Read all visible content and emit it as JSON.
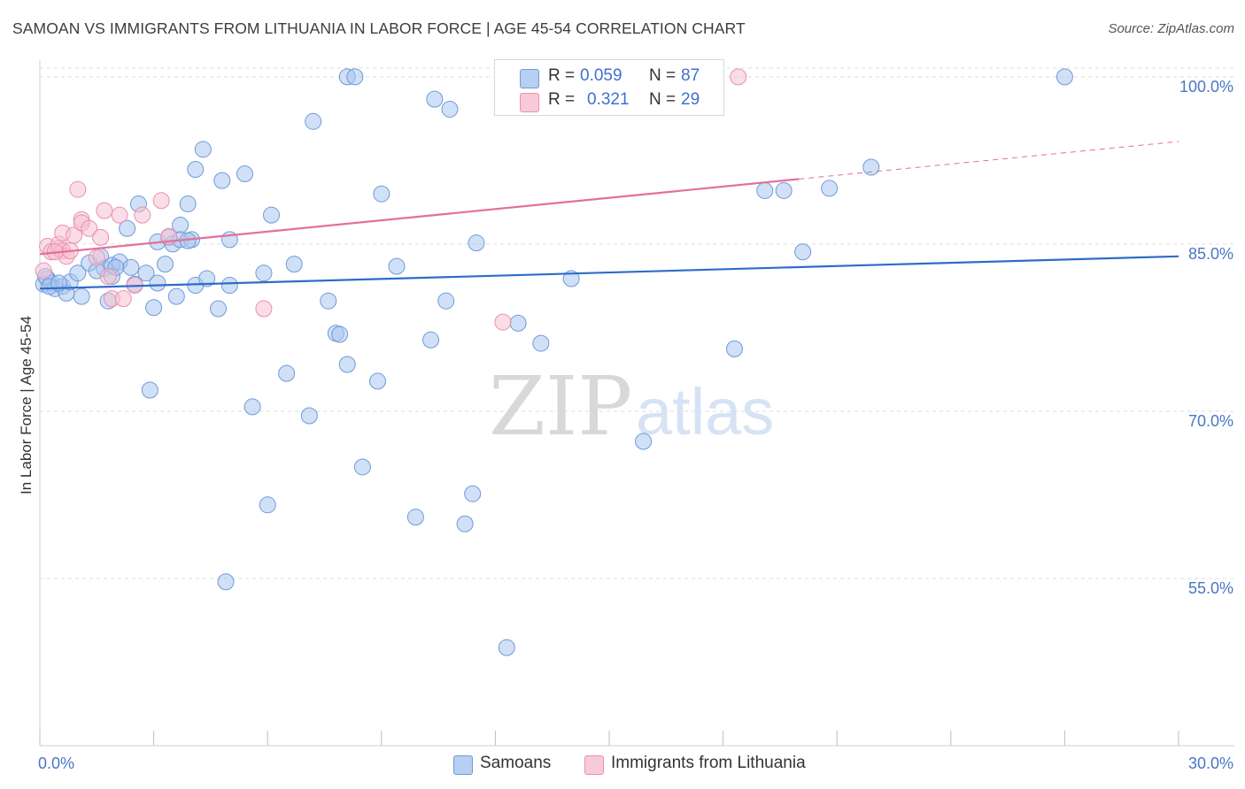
{
  "header": {
    "title": "SAMOAN VS IMMIGRANTS FROM LITHUANIA IN LABOR FORCE | AGE 45-54 CORRELATION CHART",
    "source": "Source: ZipAtlas.com"
  },
  "legend": {
    "r_label": "R =",
    "n_label": "N =",
    "series": [
      {
        "name": "Samoans",
        "r": "0.059",
        "n": "87"
      },
      {
        "name": "Immigrants from Lithuania",
        "r": "0.321",
        "n": "29"
      }
    ]
  },
  "watermark": {
    "zip": "ZIP",
    "atlas": "atlas"
  },
  "colors": {
    "blue_fill": "#a9c6ef",
    "blue_stroke": "#6f9ad8",
    "blue_line": "#2f6cc9",
    "pink_fill": "#f6c1d1",
    "pink_stroke": "#ea90ae",
    "pink_line": "#e2709a",
    "grid": "#dddddd",
    "tick_label": "#4a76c6"
  },
  "chart_data": {
    "type": "scatter",
    "title": "SAMOAN VS IMMIGRANTS FROM LITHUANIA IN LABOR FORCE | AGE 45-54 CORRELATION CHART",
    "xlabel": "",
    "ylabel": "In Labor Force | Age 45-54",
    "xlim": [
      0,
      30
    ],
    "ylim": [
      40,
      101.5
    ],
    "x_tick_labels": [
      "0.0%",
      "30.0%"
    ],
    "y_ticks": [
      55,
      70,
      85,
      100
    ],
    "y_tick_labels": [
      "55.0%",
      "70.0%",
      "85.0%",
      "100.0%"
    ],
    "grid": true,
    "legend_position": "top-center",
    "series": [
      {
        "name": "Samoans",
        "color": "#a9c6ef",
        "trend": {
          "x": [
            0,
            30
          ],
          "y": [
            81.0,
            83.9
          ]
        },
        "points": [
          [
            0.1,
            81.4
          ],
          [
            0.2,
            81.9
          ],
          [
            0.3,
            81.5
          ],
          [
            0.4,
            81.0
          ],
          [
            0.6,
            81.2
          ],
          [
            0.7,
            80.6
          ],
          [
            0.8,
            81.6
          ],
          [
            1.0,
            82.4
          ],
          [
            1.1,
            80.3
          ],
          [
            1.3,
            83.3
          ],
          [
            1.6,
            83.9
          ],
          [
            1.7,
            82.8
          ],
          [
            1.8,
            79.9
          ],
          [
            1.9,
            83.1
          ],
          [
            1.9,
            82.1
          ],
          [
            2.1,
            83.4
          ],
          [
            2.3,
            86.4
          ],
          [
            2.4,
            82.9
          ],
          [
            2.5,
            81.4
          ],
          [
            2.6,
            88.6
          ],
          [
            2.8,
            82.4
          ],
          [
            2.9,
            71.9
          ],
          [
            3.0,
            79.3
          ],
          [
            3.1,
            85.2
          ],
          [
            3.1,
            81.5
          ],
          [
            3.3,
            83.2
          ],
          [
            3.4,
            85.6
          ],
          [
            3.5,
            85.0
          ],
          [
            3.6,
            80.3
          ],
          [
            3.7,
            86.7
          ],
          [
            3.7,
            85.4
          ],
          [
            3.9,
            88.6
          ],
          [
            4.0,
            85.4
          ],
          [
            4.1,
            81.3
          ],
          [
            4.1,
            91.7
          ],
          [
            4.3,
            93.5
          ],
          [
            4.4,
            81.9
          ],
          [
            4.7,
            79.2
          ],
          [
            4.8,
            90.7
          ],
          [
            4.9,
            54.7
          ],
          [
            5.0,
            85.4
          ],
          [
            5.0,
            81.3
          ],
          [
            5.4,
            91.3
          ],
          [
            5.6,
            70.4
          ],
          [
            5.9,
            82.4
          ],
          [
            6.0,
            61.6
          ],
          [
            6.1,
            87.6
          ],
          [
            6.5,
            73.4
          ],
          [
            6.7,
            83.2
          ],
          [
            7.1,
            69.6
          ],
          [
            7.2,
            96.0
          ],
          [
            7.6,
            79.9
          ],
          [
            7.8,
            77.0
          ],
          [
            7.9,
            76.9
          ],
          [
            8.1,
            74.2
          ],
          [
            8.1,
            100.0
          ],
          [
            8.3,
            100.0
          ],
          [
            8.5,
            65.0
          ],
          [
            8.9,
            72.7
          ],
          [
            9.0,
            89.5
          ],
          [
            9.4,
            83.0
          ],
          [
            9.9,
            60.5
          ],
          [
            10.3,
            76.4
          ],
          [
            10.4,
            98.0
          ],
          [
            10.7,
            79.9
          ],
          [
            10.8,
            97.1
          ],
          [
            11.2,
            59.9
          ],
          [
            11.4,
            62.6
          ],
          [
            11.5,
            85.1
          ],
          [
            12.3,
            48.8
          ],
          [
            12.6,
            77.9
          ],
          [
            13.2,
            76.1
          ],
          [
            14.0,
            81.9
          ],
          [
            15.9,
            67.3
          ],
          [
            18.3,
            75.6
          ],
          [
            19.1,
            89.8
          ],
          [
            19.6,
            89.8
          ],
          [
            20.1,
            84.3
          ],
          [
            20.8,
            90.0
          ],
          [
            21.9,
            91.9
          ],
          [
            27.0,
            100.0
          ],
          [
            0.15,
            82.1
          ],
          [
            1.5,
            82.6
          ],
          [
            2.0,
            82.9
          ],
          [
            0.25,
            81.2
          ],
          [
            0.5,
            81.5
          ],
          [
            3.9,
            85.3
          ]
        ]
      },
      {
        "name": "Immigrants from Lithuania",
        "color": "#f6c1d1",
        "trend": {
          "x": [
            0,
            30
          ],
          "y": [
            84.1,
            94.2
          ]
        },
        "trend_solid_until_x": 20.0,
        "points": [
          [
            0.1,
            82.6
          ],
          [
            0.2,
            84.8
          ],
          [
            0.3,
            84.3
          ],
          [
            0.5,
            84.6
          ],
          [
            0.5,
            85.0
          ],
          [
            0.6,
            86.0
          ],
          [
            0.6,
            84.4
          ],
          [
            0.7,
            83.9
          ],
          [
            0.8,
            84.4
          ],
          [
            0.9,
            85.8
          ],
          [
            1.0,
            89.9
          ],
          [
            1.1,
            87.2
          ],
          [
            1.1,
            86.9
          ],
          [
            1.3,
            86.4
          ],
          [
            1.5,
            83.8
          ],
          [
            1.6,
            85.6
          ],
          [
            1.7,
            88.0
          ],
          [
            1.8,
            82.1
          ],
          [
            1.9,
            80.1
          ],
          [
            2.1,
            87.6
          ],
          [
            2.2,
            80.1
          ],
          [
            2.5,
            81.3
          ],
          [
            2.7,
            87.6
          ],
          [
            3.2,
            88.9
          ],
          [
            3.4,
            85.7
          ],
          [
            5.9,
            79.2
          ],
          [
            12.2,
            78.0
          ],
          [
            18.4,
            100.0
          ],
          [
            0.4,
            84.3
          ]
        ]
      }
    ]
  }
}
